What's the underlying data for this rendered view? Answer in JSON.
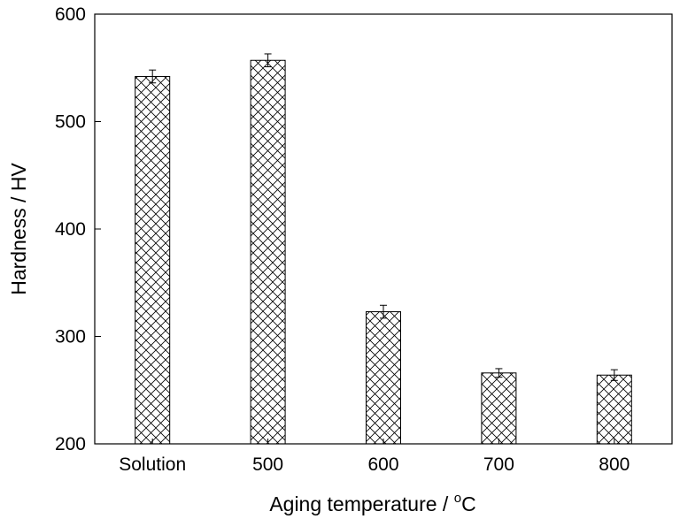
{
  "chart_data": {
    "type": "bar",
    "title": "",
    "xlabel_main": "Aging temperature / ",
    "xlabel_sup": "o",
    "xlabel_unit": "C",
    "ylabel": "Hardness / HV",
    "categories": [
      "Solution",
      "500",
      "600",
      "700",
      "800"
    ],
    "values": [
      542,
      557,
      323,
      266,
      264
    ],
    "errors": [
      6,
      6,
      6,
      4,
      5
    ],
    "ylim": [
      200,
      600
    ],
    "yticks": [
      200,
      300,
      400,
      500,
      600
    ],
    "grid": false,
    "legend": "none",
    "bar_pattern": "crosshatch",
    "colors": {
      "bar_fill": "#ffffff",
      "bar_stroke": "#000000",
      "axis": "#000000"
    }
  }
}
